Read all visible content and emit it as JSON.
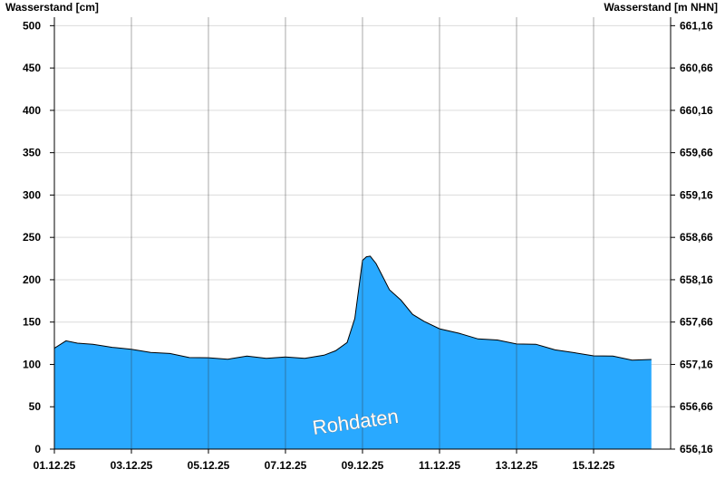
{
  "chart_data": {
    "type": "area",
    "ylabel_left": "Wasserstand [cm]",
    "ylabel_right": "Wasserstand [m NHN]",
    "watermark": "Rohdaten",
    "ylim_left": [
      0,
      510
    ],
    "ylim_right": [
      656.16,
      661.26
    ],
    "yticks_left": [
      "0",
      "50",
      "100",
      "150",
      "200",
      "250",
      "300",
      "350",
      "400",
      "450",
      "500"
    ],
    "yticks_right": [
      "656,16",
      "656,66",
      "657,16",
      "657,66",
      "658,16",
      "658,66",
      "659,16",
      "659,66",
      "660,16",
      "660,66",
      "661,16"
    ],
    "xticks": [
      "01.12.25",
      "03.12.25",
      "05.12.25",
      "07.12.25",
      "09.12.25",
      "11.12.25",
      "13.12.25",
      "15.12.25"
    ],
    "xlim_days": [
      0,
      16
    ],
    "grid": true,
    "fill_color": "#29a9ff",
    "line_color": "#000000",
    "series": [
      {
        "x_days": [
          0,
          0.3,
          0.6,
          1.0,
          1.5,
          2.0,
          2.5,
          3.0,
          3.5,
          4.0,
          4.5,
          5.0,
          5.5,
          6.0,
          6.5,
          7.0,
          7.3,
          7.6,
          7.8,
          8.0,
          8.1,
          8.2,
          8.35,
          8.5,
          8.7,
          9.0,
          9.3,
          9.6,
          10.0,
          10.5,
          11.0,
          11.5,
          12.0,
          12.5,
          13.0,
          13.5,
          14.0,
          14.5,
          15.0,
          15.5
        ],
        "values": [
          120,
          127,
          126,
          123,
          121,
          117,
          115,
          112,
          109,
          107,
          107,
          109,
          108,
          108,
          108,
          110,
          117,
          125,
          155,
          222,
          228,
          227,
          220,
          205,
          189,
          175,
          160,
          150,
          143,
          136,
          131,
          128,
          125,
          123,
          118,
          113,
          111,
          109,
          106,
          105
        ]
      }
    ]
  }
}
